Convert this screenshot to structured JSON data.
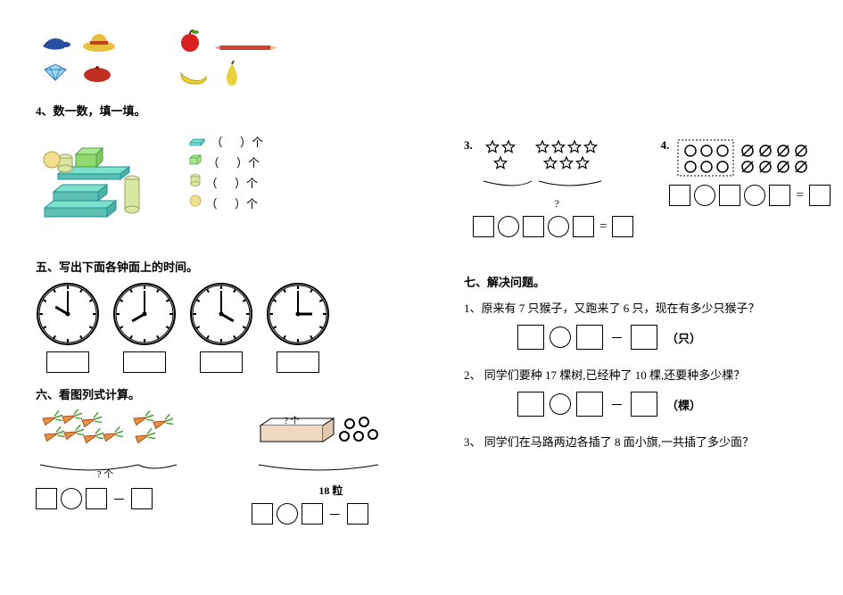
{
  "q4_label": "4、数一数，填一填。",
  "count_unit": "）个",
  "count_lp": "（",
  "q5_title": "五、写出下面各钟面上的时间。",
  "clocks": [
    {
      "hour": 10,
      "min": 0
    },
    {
      "hour": 8,
      "min": 0
    },
    {
      "hour": 4,
      "min": 0
    },
    {
      "hour": 3,
      "min": 0
    }
  ],
  "q6_title": "六、看图列式计算。",
  "q6_1_qmark": "? 个",
  "q6_2_top": "? 个",
  "q6_2_total": "18 粒",
  "r_q3_num": "3.",
  "r_q3_qmark": "?",
  "r_q4_num": "4.",
  "sec7_title": "七、解决问题。",
  "p1_text": "1、原来有 7 只猴子，又跑来了 6 只，现在有多少只猴子？",
  "p1_unit": "（只）",
  "p2_text": "2、 同学们要种 17 棵树,已经种了 10 棵,还要种多少棵？",
  "p2_unit": "（棵）",
  "p3_text": "3、 同学们在马路两边各插了 8 面小旗,一共插了多少面？",
  "eq": "=",
  "dash": "－",
  "shapes": {
    "cuboid_color": "#7de0c8",
    "cube_color": "#a8e890",
    "cyl_color": "#d8e8a0"
  }
}
